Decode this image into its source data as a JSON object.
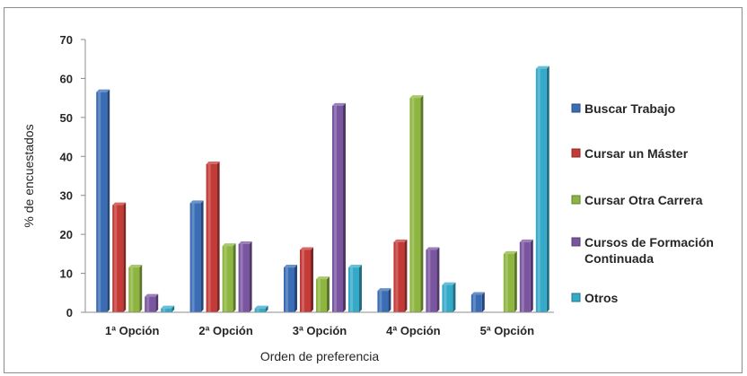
{
  "chart_data": {
    "type": "bar",
    "categories": [
      "1ª Opción",
      "2ª Opción",
      "3ª Opción",
      "4ª Opción",
      "5ª Opción"
    ],
    "series": [
      {
        "name": "Buscar Trabajo",
        "color": "#3a6db5",
        "values": [
          56.5,
          28,
          11.5,
          5.5,
          4.5
        ]
      },
      {
        "name": "Cursar un Máster",
        "color": "#c43a36",
        "values": [
          27.5,
          38,
          16,
          18,
          0
        ]
      },
      {
        "name": "Cursar Otra Carrera",
        "color": "#8db53f",
        "values": [
          11.5,
          17,
          8.5,
          55,
          15
        ]
      },
      {
        "name": "Cursos de Formación Continuada",
        "color": "#7a55a0",
        "values": [
          4,
          17.5,
          53,
          16,
          18
        ]
      },
      {
        "name": "Otros",
        "color": "#35a9c8",
        "values": [
          1,
          1,
          11.5,
          7,
          62.5
        ]
      }
    ],
    "ylim": [
      0,
      70
    ],
    "yticks": [
      0,
      10,
      20,
      30,
      40,
      50,
      60,
      70
    ],
    "xlabel": "Orden de preferencia",
    "ylabel": "% de encuestados",
    "legend_position": "right"
  }
}
